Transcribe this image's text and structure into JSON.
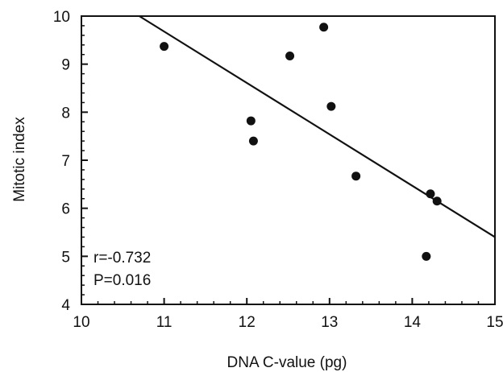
{
  "chart_data": {
    "type": "scatter",
    "xlabel": "DNA C-value (pg)",
    "ylabel": "Mitotic index",
    "xlim": [
      10,
      15
    ],
    "ylim": [
      4,
      10
    ],
    "x_ticks": [
      10,
      11,
      12,
      13,
      14,
      15
    ],
    "y_ticks": [
      4,
      5,
      6,
      7,
      8,
      9,
      10
    ],
    "x_tick_labels": [
      "10",
      "11",
      "12",
      "13",
      "14",
      "15"
    ],
    "y_tick_labels": [
      "4",
      "5",
      "6",
      "7",
      "8",
      "9",
      "10"
    ],
    "grid": false,
    "series": [
      {
        "points": [
          {
            "x": 11.0,
            "y": 9.37
          },
          {
            "x": 12.05,
            "y": 7.82
          },
          {
            "x": 12.08,
            "y": 7.4
          },
          {
            "x": 12.52,
            "y": 9.17
          },
          {
            "x": 12.93,
            "y": 9.77
          },
          {
            "x": 13.02,
            "y": 8.12
          },
          {
            "x": 13.32,
            "y": 6.67
          },
          {
            "x": 14.17,
            "y": 5.0
          },
          {
            "x": 14.22,
            "y": 6.3
          },
          {
            "x": 14.3,
            "y": 6.15
          }
        ],
        "color": "#111111"
      }
    ],
    "fit_line": {
      "x": [
        10.7,
        15.0
      ],
      "y": [
        10.0,
        5.4
      ]
    },
    "annotations": {
      "r": "r=-0.732",
      "p": "P=0.016"
    }
  }
}
